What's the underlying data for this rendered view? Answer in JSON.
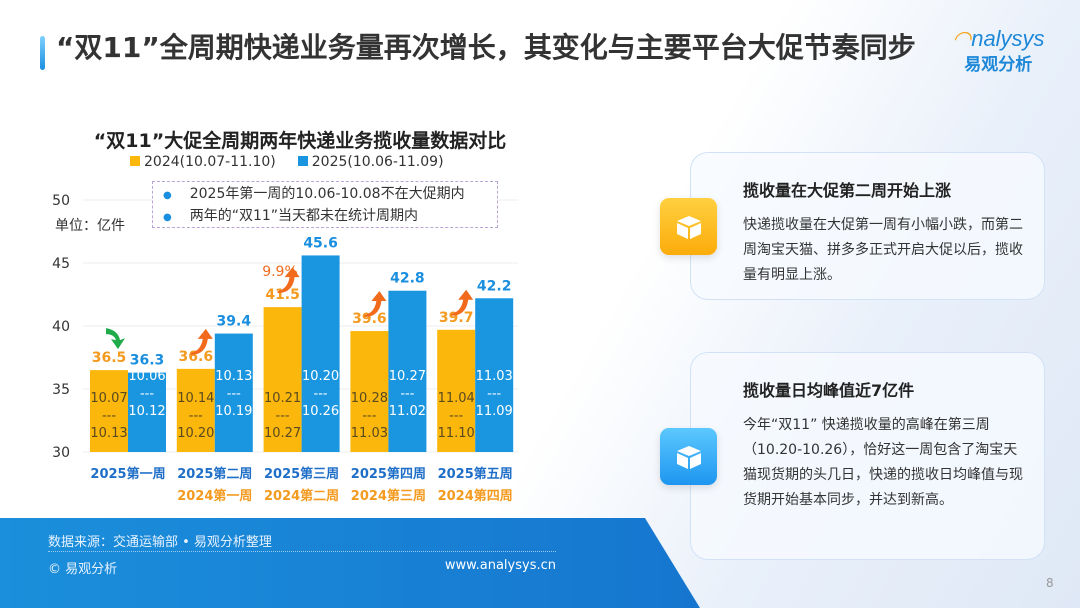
{
  "header": {
    "title": "“双11”全周期快递业务量再次增长，其变化与主要平台大促节奏同步",
    "logo_en": "analysys",
    "logo_cn": "易观分析"
  },
  "chart_data": {
    "type": "bar",
    "title": "“双11”大促全周期两年快递业务揽收量数据对比",
    "unit_label": "单位：亿件",
    "ylim": [
      30,
      50
    ],
    "yticks": [
      "30",
      "35",
      "40",
      "45",
      "50"
    ],
    "grid": true,
    "legend_position": "top",
    "categories": [
      "2025第一周",
      "2025第二周",
      "2025第三周",
      "2025第四周",
      "2025第五周"
    ],
    "categories_2024": [
      "",
      "2024第一周",
      "2024第二周",
      "2024第三周",
      "2024第四周"
    ],
    "series": [
      {
        "name": "2024(10.07-11.10)",
        "color": "#fbb70c",
        "values": [
          36.5,
          36.6,
          41.5,
          39.6,
          39.7
        ],
        "labels": [
          "36.5",
          "36.6",
          "41.5",
          "39.6",
          "39.7"
        ],
        "ranges": [
          [
            "10.07",
            "---",
            "10.13"
          ],
          [
            "10.14",
            "---",
            "10.20"
          ],
          [
            "10.21",
            "---",
            "10.27"
          ],
          [
            "10.28",
            "---",
            "11.03"
          ],
          [
            "11.04",
            "---",
            "11.10"
          ]
        ]
      },
      {
        "name": "2025(10.06-11.09)",
        "color": "#1a96e0",
        "values": [
          36.3,
          39.4,
          45.6,
          42.8,
          42.2
        ],
        "labels": [
          "36.3",
          "39.4",
          "45.6",
          "42.8",
          "42.2"
        ],
        "ranges": [
          [
            "10.06",
            "---",
            "10.12"
          ],
          [
            "10.13",
            "---",
            "10.19"
          ],
          [
            "10.20",
            "---",
            "10.26"
          ],
          [
            "10.27",
            "---",
            "11.02"
          ],
          [
            "11.03",
            "---",
            "11.09"
          ]
        ]
      }
    ],
    "trend": [
      "down",
      "up",
      "up",
      "up",
      "up"
    ],
    "annotation": "9.9%",
    "notes": [
      "2025年第一周的10.06-10.08不在大促期内",
      "两年的“双11”当天都未在统计周期内"
    ]
  },
  "cards": [
    {
      "title": "揽收量在大促第二周开始上涨",
      "body": "快递揽收量在大促第一周有小幅小跌，而第二周淘宝天猫、拼多多正式开启大促以后，揽收量有明显上涨。",
      "icon": "package-icon",
      "color": "#fbb70c"
    },
    {
      "title": "揽收量日均峰值近7亿件",
      "body": "今年“双11” 快递揽收量的高峰在第三周（10.20-10.26），恰好这一周包含了淘宝天猫现货期的头几日，快递的揽收日均峰值与现货期开始基本同步，并达到新高。",
      "icon": "package-icon",
      "color": "#1e96f0"
    }
  ],
  "footer": {
    "source": "数据来源：交通运输部 • 易观分析整理",
    "copyright": "© 易观分析",
    "website": "www.analysys.cn",
    "page": "8"
  }
}
